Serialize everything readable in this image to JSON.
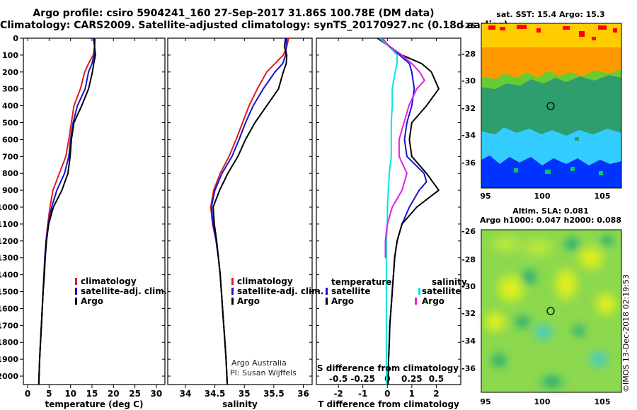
{
  "header": {
    "line1": "Argo profile: csiro 5904241_160 27-Sep-2017 31.86S 100.78E (DM data)",
    "line2": "Climatology: CARS2009. Satellite-adjusted climatology: synTS_20170927.nc (0.18d earlier)"
  },
  "colors": {
    "climatology": "#e41a1a",
    "satellite": "#1414d2",
    "argo": "#000000",
    "sat_salinity": "#00e5e5",
    "argo_salinity": "#e020e0"
  },
  "chart_data": [
    {
      "id": "temperature",
      "type": "line",
      "xlabel": "temperature (deg C)",
      "ylabel": "",
      "xlim": [
        -1,
        32
      ],
      "ylim": [
        2050,
        0
      ],
      "xticks": [
        0,
        5,
        10,
        15,
        20,
        25,
        30
      ],
      "yticks": [
        0,
        100,
        200,
        300,
        400,
        500,
        600,
        700,
        800,
        900,
        1000,
        1100,
        1200,
        1300,
        1400,
        1500,
        1600,
        1700,
        1800,
        1900,
        2000
      ],
      "legend": {
        "position": "bottom-right",
        "items": [
          "climatology",
          "satellite-adj. clim.",
          "Argo"
        ]
      },
      "series": [
        {
          "name": "climatology",
          "color": "#e41a1a",
          "points": [
            [
              15.8,
              0
            ],
            [
              15.6,
              50
            ],
            [
              15.3,
              100
            ],
            [
              14.2,
              150
            ],
            [
              13.3,
              200
            ],
            [
              12.3,
              300
            ],
            [
              10.8,
              400
            ],
            [
              10.2,
              500
            ],
            [
              9.6,
              600
            ],
            [
              8.9,
              700
            ],
            [
              7.4,
              800
            ],
            [
              5.9,
              900
            ],
            [
              5.2,
              1000
            ],
            [
              4.7,
              1100
            ],
            [
              4.3,
              1200
            ],
            [
              4.0,
              1300
            ],
            [
              3.8,
              1400
            ],
            [
              3.6,
              1500
            ],
            [
              3.4,
              1600
            ],
            [
              3.2,
              1700
            ],
            [
              3.0,
              1800
            ],
            [
              2.8,
              1900
            ],
            [
              2.6,
              2050
            ]
          ]
        },
        {
          "name": "satellite-adj. clim.",
          "color": "#1414d2",
          "points": [
            [
              15.5,
              0
            ],
            [
              15.6,
              50
            ],
            [
              15.5,
              100
            ],
            [
              15.0,
              150
            ],
            [
              14.2,
              200
            ],
            [
              13.4,
              300
            ],
            [
              11.6,
              400
            ],
            [
              10.6,
              500
            ],
            [
              10.0,
              600
            ],
            [
              9.6,
              700
            ],
            [
              8.6,
              800
            ],
            [
              6.8,
              900
            ],
            [
              5.6,
              1000
            ],
            [
              4.8,
              1100
            ],
            [
              4.3,
              1200
            ],
            [
              4.0,
              1300
            ],
            [
              3.8,
              1400
            ],
            [
              3.6,
              1500
            ],
            [
              3.4,
              1600
            ],
            [
              3.2,
              1700
            ],
            [
              3.0,
              1800
            ],
            [
              2.8,
              1900
            ],
            [
              2.6,
              2050
            ]
          ]
        },
        {
          "name": "Argo",
          "color": "#000000",
          "points": [
            [
              15.4,
              0
            ],
            [
              15.6,
              50
            ],
            [
              15.8,
              100
            ],
            [
              15.4,
              150
            ],
            [
              15.1,
              200
            ],
            [
              14.2,
              300
            ],
            [
              12.6,
              400
            ],
            [
              10.8,
              500
            ],
            [
              10.2,
              600
            ],
            [
              9.9,
              700
            ],
            [
              9.4,
              800
            ],
            [
              8.0,
              900
            ],
            [
              6.0,
              1000
            ],
            [
              4.9,
              1100
            ],
            [
              4.4,
              1200
            ],
            [
              4.1,
              1300
            ],
            [
              3.9,
              1400
            ],
            [
              3.6,
              1500
            ],
            [
              3.4,
              1600
            ],
            [
              3.2,
              1700
            ],
            [
              3.0,
              1800
            ],
            [
              2.8,
              1900
            ],
            [
              2.6,
              2050
            ]
          ]
        }
      ]
    },
    {
      "id": "salinity",
      "type": "line",
      "xlabel": "salinity",
      "xlim": [
        33.7,
        36.15
      ],
      "ylim": [
        2050,
        0
      ],
      "xticks": [
        34,
        34.5,
        35,
        35.5,
        36
      ],
      "xtick_labels": [
        "34",
        "34.5",
        "35",
        "35.5",
        "36"
      ],
      "legend": {
        "position": "bottom-right",
        "items": [
          "climatology",
          "satellite-adj. clim.",
          "Argo"
        ]
      },
      "annotation": [
        "Argo Australia",
        "PI: Susan Wijffels"
      ],
      "series": [
        {
          "name": "climatology",
          "color": "#e41a1a",
          "points": [
            [
              35.75,
              0
            ],
            [
              35.72,
              50
            ],
            [
              35.66,
              100
            ],
            [
              35.52,
              150
            ],
            [
              35.38,
              200
            ],
            [
              35.22,
              300
            ],
            [
              35.08,
              400
            ],
            [
              34.97,
              500
            ],
            [
              34.86,
              600
            ],
            [
              34.74,
              700
            ],
            [
              34.59,
              800
            ],
            [
              34.48,
              900
            ],
            [
              34.43,
              1000
            ],
            [
              34.46,
              1100
            ],
            [
              34.52,
              1200
            ],
            [
              34.56,
              1300
            ],
            [
              34.59,
              1400
            ],
            [
              34.61,
              1500
            ],
            [
              34.63,
              1600
            ],
            [
              34.65,
              1700
            ],
            [
              34.67,
              1800
            ],
            [
              34.69,
              1900
            ],
            [
              34.71,
              2050
            ]
          ]
        },
        {
          "name": "satellite-adj. clim.",
          "color": "#1414d2",
          "points": [
            [
              35.72,
              0
            ],
            [
              35.71,
              50
            ],
            [
              35.7,
              100
            ],
            [
              35.65,
              150
            ],
            [
              35.52,
              200
            ],
            [
              35.32,
              300
            ],
            [
              35.15,
              400
            ],
            [
              35.02,
              500
            ],
            [
              34.91,
              600
            ],
            [
              34.79,
              700
            ],
            [
              34.62,
              800
            ],
            [
              34.5,
              900
            ],
            [
              34.44,
              1000
            ],
            [
              34.47,
              1100
            ],
            [
              34.52,
              1200
            ],
            [
              34.56,
              1300
            ],
            [
              34.59,
              1400
            ],
            [
              34.61,
              1500
            ],
            [
              34.63,
              1600
            ],
            [
              34.65,
              1700
            ],
            [
              34.67,
              1800
            ],
            [
              34.69,
              1900
            ],
            [
              34.71,
              2050
            ]
          ]
        },
        {
          "name": "Argo",
          "color": "#000000",
          "points": [
            [
              35.7,
              0
            ],
            [
              35.68,
              50
            ],
            [
              35.72,
              100
            ],
            [
              35.71,
              150
            ],
            [
              35.66,
              200
            ],
            [
              35.58,
              300
            ],
            [
              35.38,
              400
            ],
            [
              35.18,
              500
            ],
            [
              35.02,
              600
            ],
            [
              34.89,
              700
            ],
            [
              34.72,
              800
            ],
            [
              34.58,
              900
            ],
            [
              34.47,
              1000
            ],
            [
              34.49,
              1100
            ],
            [
              34.53,
              1200
            ],
            [
              34.56,
              1300
            ],
            [
              34.59,
              1400
            ],
            [
              34.61,
              1500
            ],
            [
              34.63,
              1600
            ],
            [
              34.65,
              1700
            ],
            [
              34.67,
              1800
            ],
            [
              34.69,
              1900
            ],
            [
              34.71,
              2050
            ]
          ]
        }
      ]
    },
    {
      "id": "difference",
      "type": "line",
      "xlabel": "T difference from climatology",
      "top_axis_label": "S difference from climatology",
      "xlim": [
        -2.9,
        3.0
      ],
      "ylim": [
        2050,
        0
      ],
      "xticks": [
        -2,
        -1,
        0,
        1,
        2
      ],
      "top_ticks": [
        -0.5,
        -0.25,
        0,
        0.25,
        0.5
      ],
      "top_tick_labels": [
        "-0.5",
        "-0.25",
        "0",
        "0.25",
        "0.5"
      ],
      "s_scale": 4,
      "legend": {
        "position": "bottom",
        "left_title": "temperature",
        "left_items": [
          "satellite",
          "Argo"
        ],
        "right_title": "salinity",
        "right_items": [
          "satellite",
          "Argo"
        ]
      },
      "series": [
        {
          "name": "T satellite",
          "color": "#1414d2",
          "points": [
            [
              -0.3,
              0
            ],
            [
              0.1,
              50
            ],
            [
              0.5,
              100
            ],
            [
              0.9,
              150
            ],
            [
              1.0,
              200
            ],
            [
              1.1,
              300
            ],
            [
              1.0,
              400
            ],
            [
              0.8,
              500
            ],
            [
              0.7,
              600
            ],
            [
              0.8,
              700
            ],
            [
              1.5,
              800
            ],
            [
              1.6,
              850
            ],
            [
              1.3,
              900
            ],
            [
              0.9,
              1000
            ],
            [
              0.6,
              1100
            ],
            [
              0.4,
              1200
            ],
            [
              0.3,
              1300
            ],
            [
              0.25,
              1400
            ],
            [
              0.2,
              1500
            ],
            [
              0.15,
              1600
            ],
            [
              0.1,
              1700
            ],
            [
              0.08,
              1800
            ],
            [
              0.05,
              1900
            ],
            [
              0.03,
              2050
            ]
          ]
        },
        {
          "name": "T Argo",
          "color": "#000000",
          "points": [
            [
              -0.4,
              0
            ],
            [
              0.1,
              50
            ],
            [
              0.6,
              100
            ],
            [
              1.4,
              150
            ],
            [
              1.8,
              200
            ],
            [
              2.1,
              300
            ],
            [
              1.6,
              400
            ],
            [
              1.0,
              500
            ],
            [
              0.9,
              600
            ],
            [
              1.0,
              700
            ],
            [
              1.6,
              800
            ],
            [
              2.1,
              900
            ],
            [
              1.2,
              1000
            ],
            [
              0.6,
              1100
            ],
            [
              0.4,
              1200
            ],
            [
              0.3,
              1300
            ],
            [
              0.25,
              1400
            ],
            [
              0.2,
              1500
            ],
            [
              0.15,
              1600
            ],
            [
              0.1,
              1700
            ],
            [
              0.08,
              1800
            ],
            [
              0.05,
              1900
            ],
            [
              0.03,
              2050
            ]
          ]
        },
        {
          "name": "S satellite",
          "color": "#00e5e5",
          "points": [
            [
              -0.08,
              0
            ],
            [
              0.02,
              50
            ],
            [
              0.1,
              100
            ],
            [
              0.1,
              150
            ],
            [
              0.08,
              200
            ],
            [
              0.05,
              300
            ],
            [
              0.05,
              400
            ],
            [
              0.04,
              500
            ],
            [
              0.04,
              600
            ],
            [
              0.04,
              700
            ],
            [
              0.02,
              800
            ],
            [
              0.01,
              900
            ],
            [
              0.0,
              1000
            ],
            [
              0.0,
              1100
            ],
            [
              -0.01,
              1200
            ],
            [
              -0.01,
              1300
            ],
            [
              -0.01,
              1400
            ],
            [
              -0.01,
              1500
            ],
            [
              -0.01,
              1600
            ],
            [
              -0.01,
              1700
            ],
            [
              -0.01,
              1800
            ],
            [
              -0.01,
              1900
            ],
            [
              -0.01,
              2050
            ]
          ]
        },
        {
          "name": "S Argo",
          "color": "#e020e0",
          "points": [
            [
              -0.05,
              0
            ],
            [
              0.02,
              50
            ],
            [
              0.15,
              100
            ],
            [
              0.25,
              150
            ],
            [
              0.33,
              200
            ],
            [
              0.38,
              250
            ],
            [
              0.3,
              300
            ],
            [
              0.22,
              400
            ],
            [
              0.17,
              500
            ],
            [
              0.12,
              600
            ],
            [
              0.12,
              700
            ],
            [
              0.2,
              800
            ],
            [
              0.15,
              900
            ],
            [
              0.05,
              1000
            ],
            [
              0.0,
              1100
            ],
            [
              -0.02,
              1200
            ],
            [
              -0.02,
              1300
            ]
          ]
        }
      ]
    }
  ],
  "maps": {
    "sst": {
      "title": "sat. SST: 15.4 Argo: 15.3",
      "lat_ticks": [
        "-26",
        "-28",
        "-30",
        "-32",
        "-34",
        "-36"
      ],
      "lon_ticks": [
        "95",
        "100",
        "105"
      ],
      "colors": [
        "#0033ff",
        "#00cc66",
        "#33ccff",
        "#ff9900",
        "#ffcc00",
        "#ff0000",
        "#66cc33",
        "#2e9e6e"
      ]
    },
    "sla": {
      "title1": "Altim. SLA: 0.081",
      "title2": "Argo h1000: 0.047 h2000: 0.088",
      "lat_ticks": [
        "-26",
        "-28",
        "-30",
        "-32",
        "-34",
        "-36"
      ],
      "lon_ticks": [
        "95",
        "100",
        "105"
      ]
    }
  },
  "credit": "©IMOS 13-Dec-2018 02:19:53"
}
